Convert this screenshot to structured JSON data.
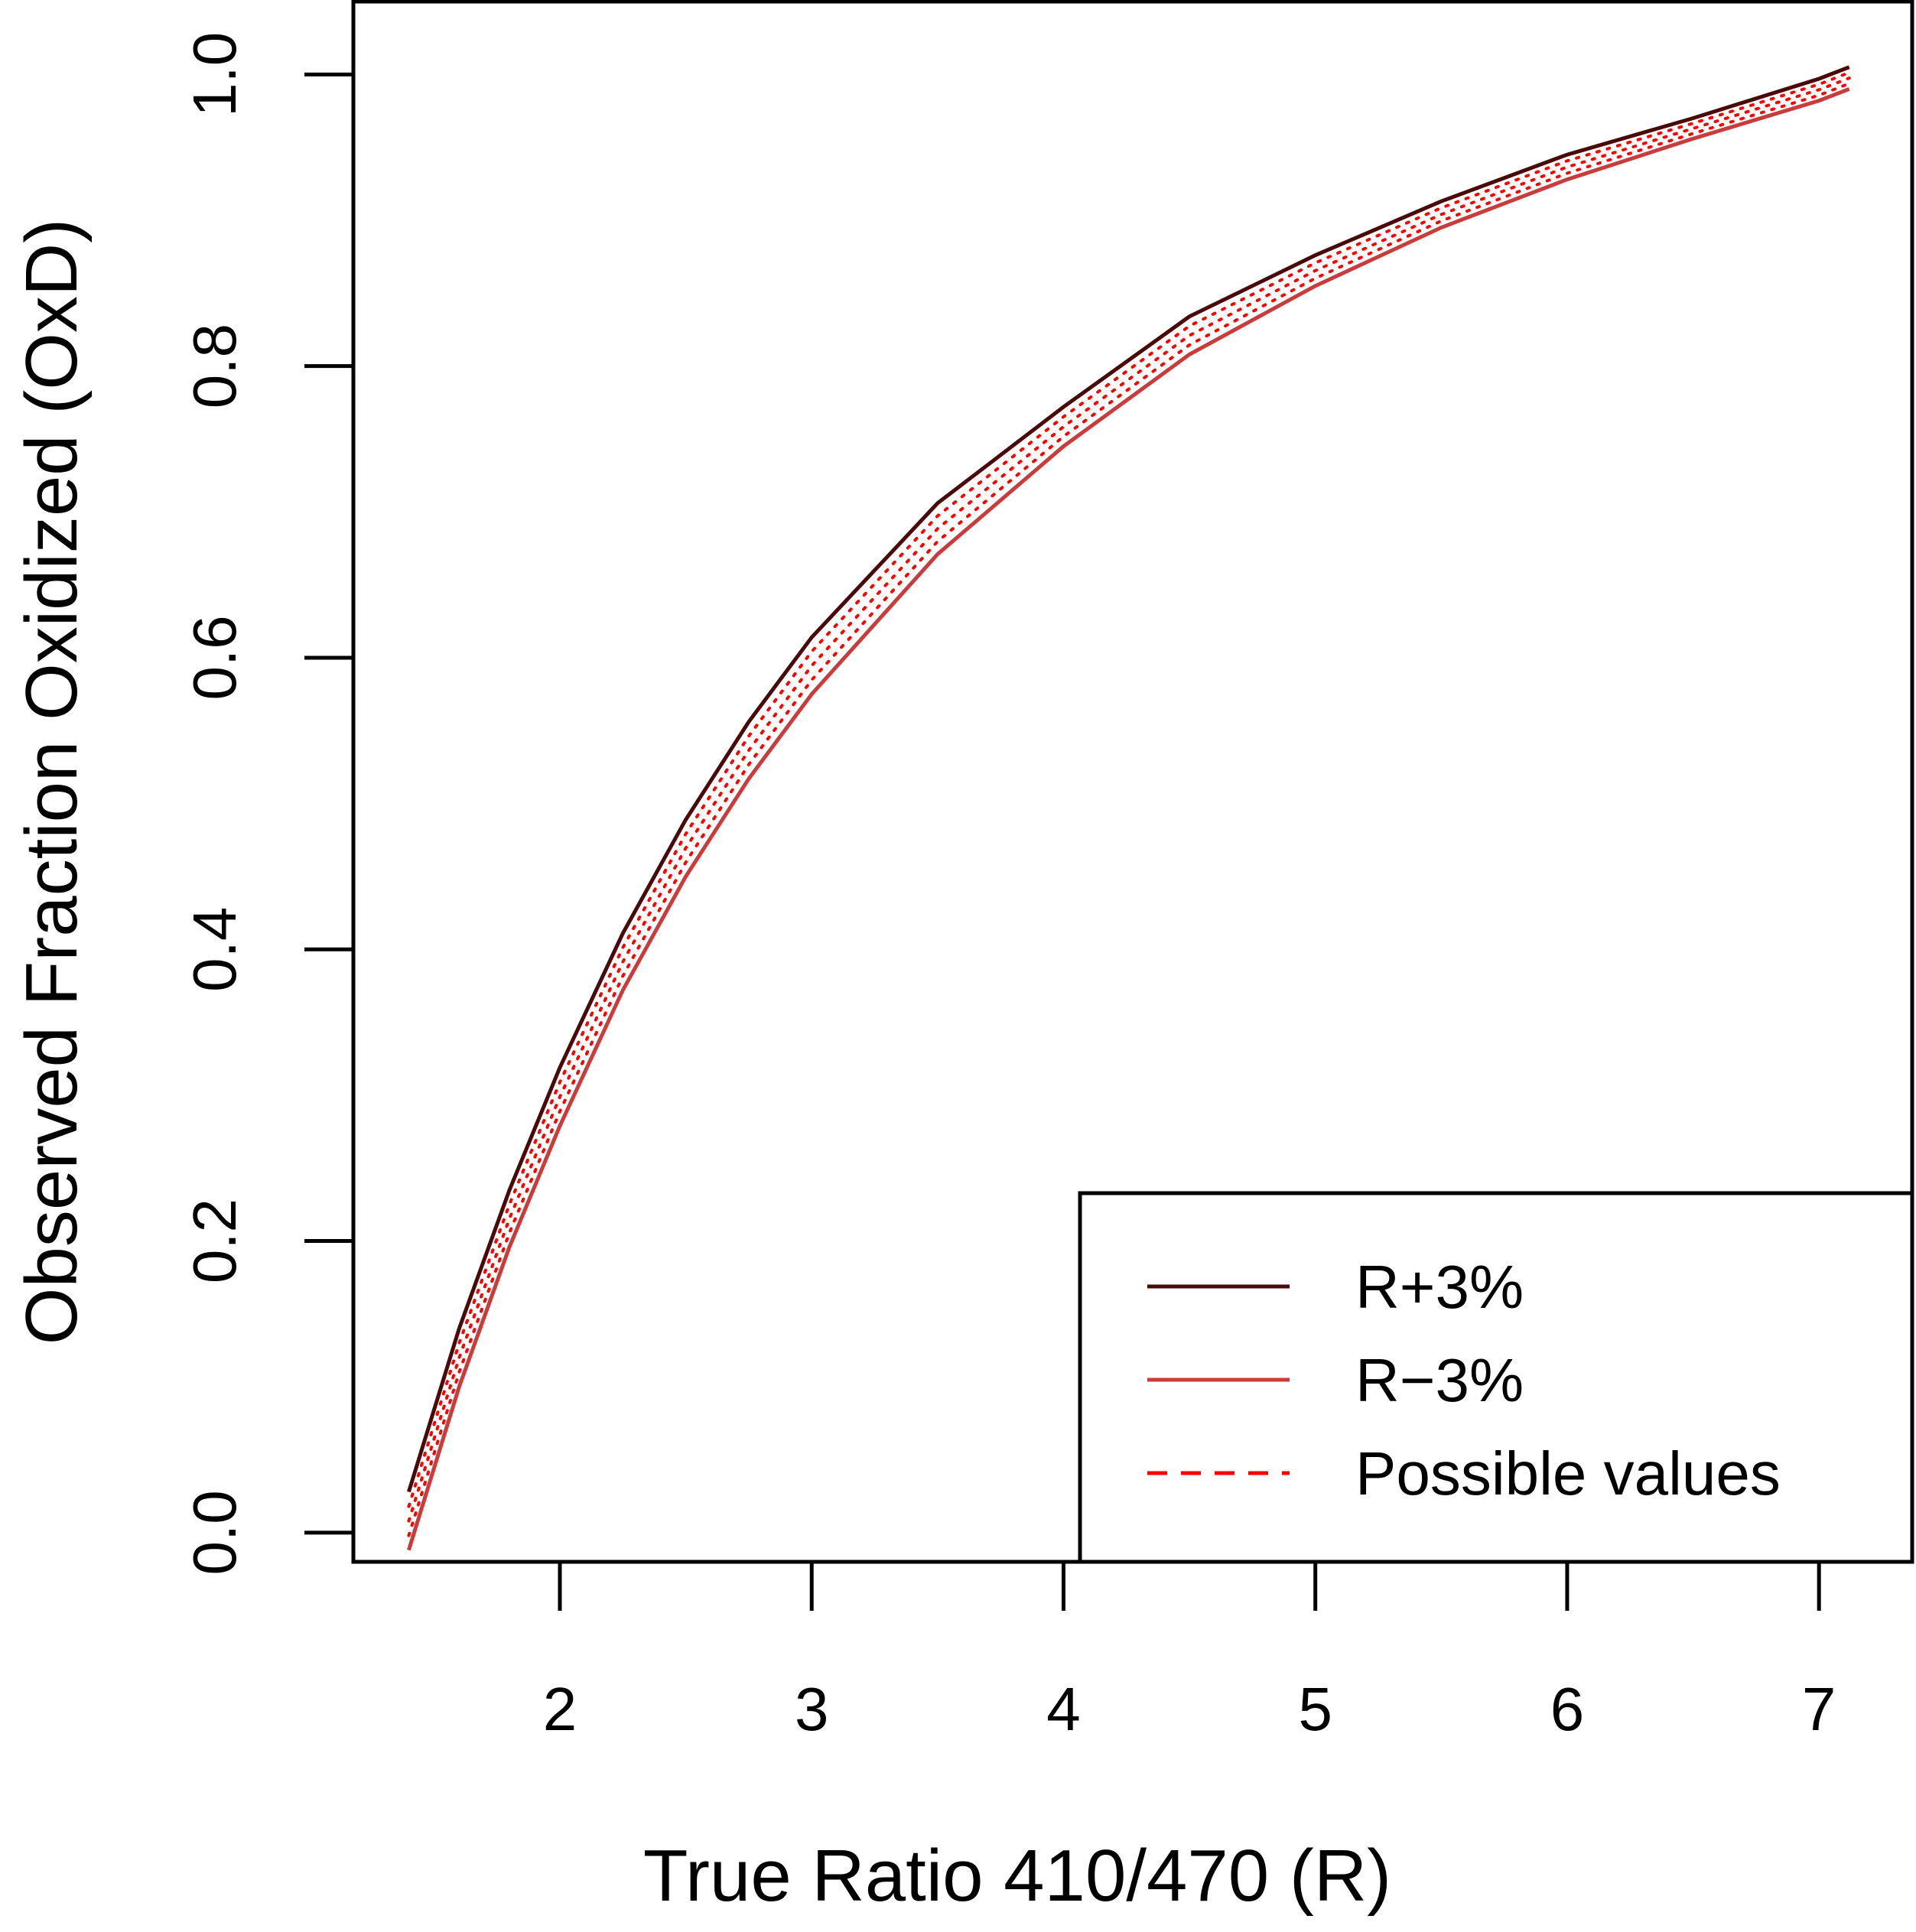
{
  "chart_data": {
    "type": "line",
    "title": "",
    "xlabel": "True Ratio 410/470 (R)",
    "ylabel": "Observed Fraction Oxidized (OxD)",
    "xlim": [
      1.18,
      7.37
    ],
    "ylim": [
      -0.02,
      1.05
    ],
    "x_ticks": [
      2,
      3,
      4,
      5,
      6,
      7
    ],
    "x_tick_labels": [
      "2",
      "3",
      "4",
      "5",
      "6",
      "7"
    ],
    "y_ticks": [
      0.0,
      0.2,
      0.4,
      0.6,
      0.8,
      1.0
    ],
    "y_tick_labels": [
      "0.0",
      "0.2",
      "0.4",
      "0.6",
      "0.8",
      "1.0"
    ],
    "x": [
      1.4,
      1.6,
      1.8,
      2.0,
      2.25,
      2.5,
      2.75,
      3.0,
      3.5,
      4.0,
      4.5,
      5.0,
      5.5,
      6.0,
      6.5,
      7.0,
      7.12
    ],
    "series": [
      {
        "name": "R+3%",
        "color": "#4a0a0a",
        "style": "solid",
        "values": [
          0.028,
          0.14,
          0.235,
          0.319,
          0.411,
          0.489,
          0.556,
          0.614,
          0.706,
          0.772,
          0.834,
          0.876,
          0.913,
          0.945,
          0.97,
          0.997,
          1.005
        ]
      },
      {
        "name": "R−3%",
        "color": "#c83c3c",
        "style": "solid",
        "values": [
          -0.012,
          0.1,
          0.196,
          0.279,
          0.372,
          0.45,
          0.517,
          0.575,
          0.671,
          0.745,
          0.808,
          0.855,
          0.895,
          0.928,
          0.956,
          0.982,
          0.99
        ]
      }
    ],
    "band": {
      "name": "Possible values",
      "color": "#ff0000",
      "style": "dotted"
    },
    "legend": {
      "position": "bottom-right",
      "entries": [
        {
          "label": "R+3%",
          "color": "#4a0a0a",
          "style": "solid"
        },
        {
          "label": "R−3%",
          "color": "#c83c3c",
          "style": "solid"
        },
        {
          "label": "Possible values",
          "color": "#ff0000",
          "style": "dashed"
        }
      ]
    },
    "grid": false
  }
}
